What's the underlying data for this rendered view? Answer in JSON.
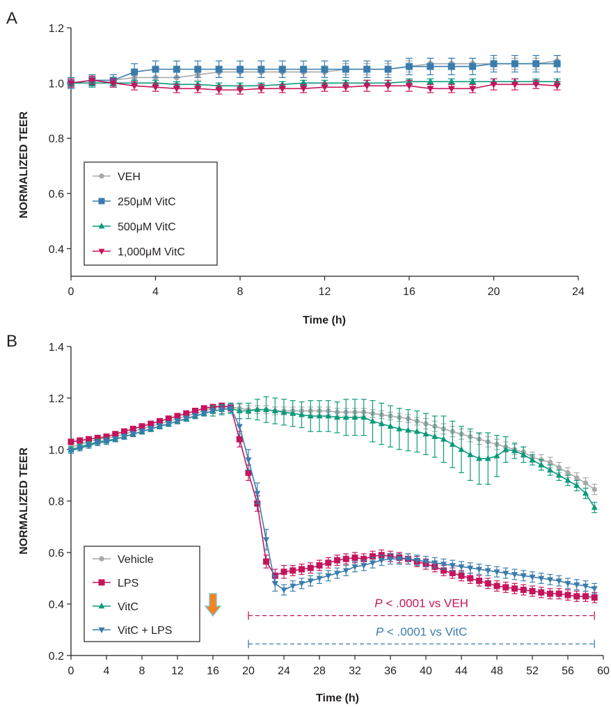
{
  "chart_data": [
    {
      "type": "line",
      "panel_label": "A",
      "xlabel": "Time (h)",
      "ylabel": "NORMALIZED TEER",
      "xlim": [
        0,
        24
      ],
      "ylim": [
        0.3,
        1.2
      ],
      "xticks": [
        0,
        4,
        8,
        12,
        16,
        20,
        24
      ],
      "yticks": [
        0.4,
        0.6,
        0.8,
        1.0,
        1.2
      ],
      "ytick_labels": [
        "0.4",
        "0.6",
        "0.8",
        "1.0",
        "1.2"
      ],
      "legend_position": "bottom-left",
      "grid": false,
      "x": [
        0,
        1,
        2,
        3,
        4,
        5,
        6,
        7,
        8,
        9,
        10,
        11,
        12,
        13,
        14,
        15,
        16,
        17,
        18,
        19,
        20,
        21,
        22,
        23
      ],
      "series": [
        {
          "name": "VEH",
          "color": "#a7a9ac",
          "marker": "circle",
          "values": [
            1.0,
            1.01,
            1.01,
            1.02,
            1.02,
            1.02,
            1.03,
            1.04,
            1.04,
            1.04,
            1.04,
            1.04,
            1.04,
            1.05,
            1.05,
            1.05,
            1.06,
            1.07,
            1.07,
            1.07,
            1.07,
            1.07,
            1.07,
            1.08
          ],
          "errors": [
            0.02,
            0.02,
            0.02,
            0.02,
            0.02,
            0.02,
            0.02,
            0.02,
            0.02,
            0.02,
            0.02,
            0.02,
            0.02,
            0.02,
            0.02,
            0.02,
            0.02,
            0.02,
            0.02,
            0.02,
            0.02,
            0.02,
            0.02,
            0.02
          ]
        },
        {
          "name": "250μM VitC",
          "color": "#3a7cad",
          "marker": "square",
          "values": [
            1.0,
            1.01,
            1.01,
            1.04,
            1.05,
            1.05,
            1.05,
            1.05,
            1.05,
            1.05,
            1.05,
            1.05,
            1.05,
            1.05,
            1.05,
            1.05,
            1.06,
            1.06,
            1.06,
            1.06,
            1.07,
            1.07,
            1.07,
            1.07
          ],
          "errors": [
            0.02,
            0.02,
            0.02,
            0.03,
            0.03,
            0.03,
            0.03,
            0.03,
            0.03,
            0.03,
            0.03,
            0.03,
            0.03,
            0.03,
            0.03,
            0.03,
            0.03,
            0.03,
            0.03,
            0.03,
            0.03,
            0.03,
            0.03,
            0.03
          ]
        },
        {
          "name": "500μM VitC",
          "color": "#0a9a7b",
          "marker": "triangle-up",
          "values": [
            1.0,
            1.0,
            1.0,
            1.0,
            1.0,
            0.995,
            0.995,
            0.99,
            0.99,
            0.99,
            0.995,
            1.0,
            1.0,
            1.0,
            1.0,
            1.0,
            1.005,
            1.005,
            1.005,
            1.005,
            1.005,
            1.005,
            1.005,
            1.005
          ],
          "errors": [
            0.015,
            0.015,
            0.015,
            0.01,
            0.01,
            0.01,
            0.01,
            0.01,
            0.01,
            0.01,
            0.01,
            0.01,
            0.01,
            0.01,
            0.01,
            0.01,
            0.01,
            0.01,
            0.01,
            0.01,
            0.01,
            0.01,
            0.01,
            0.01
          ]
        },
        {
          "name": "1,000μM VitC",
          "color": "#c4145b",
          "marker": "triangle-down",
          "values": [
            1.0,
            1.01,
            1.0,
            0.99,
            0.985,
            0.98,
            0.98,
            0.975,
            0.975,
            0.98,
            0.98,
            0.98,
            0.985,
            0.985,
            0.99,
            0.99,
            0.99,
            0.98,
            0.98,
            0.98,
            0.995,
            0.995,
            0.995,
            0.99
          ],
          "errors": [
            0.015,
            0.015,
            0.015,
            0.015,
            0.015,
            0.015,
            0.015,
            0.015,
            0.015,
            0.015,
            0.015,
            0.015,
            0.015,
            0.015,
            0.02,
            0.02,
            0.02,
            0.015,
            0.015,
            0.015,
            0.02,
            0.02,
            0.015,
            0.015
          ]
        }
      ]
    },
    {
      "type": "line",
      "panel_label": "B",
      "xlabel": "Time (h)",
      "ylabel": "NORMALIZED TEER",
      "xlim": [
        0,
        60
      ],
      "ylim": [
        0.2,
        1.4
      ],
      "xticks": [
        0,
        4,
        8,
        12,
        16,
        20,
        24,
        28,
        32,
        36,
        40,
        44,
        48,
        52,
        56,
        60
      ],
      "yticks": [
        0.2,
        0.4,
        0.6,
        0.8,
        1.0,
        1.2,
        1.4
      ],
      "ytick_labels": [
        "0.2",
        "0.4",
        "0.6",
        "0.8",
        "1.0",
        "1.2",
        "1.4"
      ],
      "legend_position": "bottom-left",
      "grid": false,
      "arrow_marker": {
        "x": 16,
        "color": "#f58220"
      },
      "annotations": [
        {
          "prefix": "P",
          "text": " < .0001 vs VEH",
          "color": "#c4145b",
          "x_range": [
            20,
            59
          ],
          "y": 0.355
        },
        {
          "prefix": "P",
          "text": " < .0001 vs VitC",
          "color": "#3a7cad",
          "x_range": [
            20,
            59
          ],
          "y": 0.245
        }
      ],
      "x": [
        0,
        1,
        2,
        3,
        4,
        5,
        6,
        7,
        8,
        9,
        10,
        11,
        12,
        13,
        14,
        15,
        16,
        17,
        18,
        19,
        20,
        21,
        22,
        23,
        24,
        25,
        26,
        27,
        28,
        29,
        30,
        31,
        32,
        33,
        34,
        35,
        36,
        37,
        38,
        39,
        40,
        41,
        42,
        43,
        44,
        45,
        46,
        47,
        48,
        49,
        50,
        51,
        52,
        53,
        54,
        55,
        56,
        57,
        58,
        59
      ],
      "series": [
        {
          "name": "Vehicle",
          "color": "#a7a9ac",
          "marker": "circle",
          "values": [
            1.01,
            1.02,
            1.03,
            1.04,
            1.045,
            1.05,
            1.06,
            1.07,
            1.08,
            1.09,
            1.1,
            1.11,
            1.12,
            1.13,
            1.14,
            1.15,
            1.16,
            1.165,
            1.165,
            1.16,
            1.155,
            1.155,
            1.155,
            1.15,
            1.15,
            1.15,
            1.15,
            1.15,
            1.15,
            1.15,
            1.145,
            1.145,
            1.145,
            1.145,
            1.14,
            1.135,
            1.13,
            1.125,
            1.12,
            1.11,
            1.1,
            1.09,
            1.08,
            1.07,
            1.06,
            1.05,
            1.04,
            1.03,
            1.02,
            1.01,
            1.0,
            0.99,
            0.97,
            0.96,
            0.95,
            0.93,
            0.91,
            0.89,
            0.87,
            0.845
          ],
          "errors": [
            0.01,
            0.01,
            0.01,
            0.01,
            0.01,
            0.01,
            0.01,
            0.01,
            0.01,
            0.01,
            0.01,
            0.01,
            0.01,
            0.01,
            0.01,
            0.01,
            0.01,
            0.01,
            0.015,
            0.015,
            0.015,
            0.015,
            0.015,
            0.015,
            0.015,
            0.015,
            0.015,
            0.015,
            0.015,
            0.015,
            0.015,
            0.015,
            0.015,
            0.015,
            0.015,
            0.015,
            0.015,
            0.015,
            0.015,
            0.015,
            0.02,
            0.02,
            0.02,
            0.02,
            0.02,
            0.02,
            0.02,
            0.02,
            0.02,
            0.02,
            0.02,
            0.02,
            0.02,
            0.02,
            0.02,
            0.02,
            0.02,
            0.02,
            0.02,
            0.02
          ]
        },
        {
          "name": "LPS",
          "color": "#c4145b",
          "marker": "square",
          "values": [
            1.03,
            1.035,
            1.04,
            1.045,
            1.05,
            1.06,
            1.07,
            1.08,
            1.09,
            1.1,
            1.11,
            1.12,
            1.13,
            1.14,
            1.15,
            1.16,
            1.165,
            1.17,
            1.165,
            1.04,
            0.91,
            0.79,
            0.565,
            0.51,
            0.525,
            0.53,
            0.535,
            0.54,
            0.55,
            0.56,
            0.57,
            0.575,
            0.58,
            0.575,
            0.585,
            0.59,
            0.585,
            0.58,
            0.575,
            0.565,
            0.555,
            0.545,
            0.53,
            0.52,
            0.51,
            0.5,
            0.49,
            0.48,
            0.47,
            0.465,
            0.46,
            0.455,
            0.45,
            0.445,
            0.44,
            0.44,
            0.435,
            0.43,
            0.43,
            0.425
          ],
          "errors": [
            0.01,
            0.01,
            0.01,
            0.01,
            0.01,
            0.01,
            0.01,
            0.01,
            0.01,
            0.01,
            0.01,
            0.01,
            0.01,
            0.01,
            0.01,
            0.01,
            0.01,
            0.01,
            0.015,
            0.03,
            0.03,
            0.03,
            0.025,
            0.025,
            0.025,
            0.02,
            0.02,
            0.02,
            0.02,
            0.02,
            0.02,
            0.02,
            0.02,
            0.02,
            0.02,
            0.02,
            0.02,
            0.02,
            0.02,
            0.02,
            0.02,
            0.02,
            0.02,
            0.02,
            0.02,
            0.02,
            0.02,
            0.02,
            0.02,
            0.02,
            0.02,
            0.02,
            0.02,
            0.02,
            0.02,
            0.02,
            0.02,
            0.02,
            0.02,
            0.02
          ]
        },
        {
          "name": "VitC",
          "color": "#0a9a7b",
          "marker": "triangle-up",
          "values": [
            1.0,
            1.01,
            1.02,
            1.03,
            1.035,
            1.04,
            1.05,
            1.06,
            1.07,
            1.08,
            1.09,
            1.1,
            1.11,
            1.12,
            1.13,
            1.14,
            1.15,
            1.155,
            1.16,
            1.15,
            1.15,
            1.155,
            1.155,
            1.15,
            1.145,
            1.14,
            1.135,
            1.13,
            1.13,
            1.13,
            1.125,
            1.125,
            1.125,
            1.125,
            1.11,
            1.1,
            1.09,
            1.08,
            1.075,
            1.07,
            1.06,
            1.05,
            1.04,
            1.02,
            1.0,
            0.98,
            0.965,
            0.965,
            0.975,
            1.0,
            0.995,
            0.98,
            0.96,
            0.94,
            0.92,
            0.9,
            0.88,
            0.86,
            0.83,
            0.775
          ],
          "errors": [
            0.01,
            0.01,
            0.01,
            0.01,
            0.01,
            0.01,
            0.01,
            0.01,
            0.01,
            0.01,
            0.01,
            0.01,
            0.01,
            0.01,
            0.01,
            0.01,
            0.02,
            0.02,
            0.02,
            0.03,
            0.03,
            0.04,
            0.05,
            0.05,
            0.05,
            0.05,
            0.05,
            0.06,
            0.06,
            0.06,
            0.06,
            0.07,
            0.07,
            0.07,
            0.08,
            0.08,
            0.08,
            0.08,
            0.08,
            0.08,
            0.08,
            0.08,
            0.09,
            0.09,
            0.09,
            0.1,
            0.1,
            0.1,
            0.08,
            0.05,
            0.03,
            0.03,
            0.02,
            0.02,
            0.02,
            0.02,
            0.02,
            0.02,
            0.02,
            0.02
          ]
        },
        {
          "name": "VitC + LPS",
          "color": "#3a7cad",
          "marker": "triangle-down",
          "values": [
            0.995,
            1.005,
            1.015,
            1.025,
            1.03,
            1.04,
            1.05,
            1.06,
            1.07,
            1.08,
            1.09,
            1.1,
            1.11,
            1.12,
            1.13,
            1.14,
            1.15,
            1.155,
            1.16,
            1.09,
            0.96,
            0.83,
            0.65,
            0.48,
            0.455,
            0.47,
            0.48,
            0.49,
            0.5,
            0.51,
            0.52,
            0.53,
            0.545,
            0.55,
            0.56,
            0.57,
            0.575,
            0.575,
            0.575,
            0.57,
            0.565,
            0.56,
            0.555,
            0.55,
            0.545,
            0.54,
            0.535,
            0.53,
            0.525,
            0.52,
            0.515,
            0.51,
            0.505,
            0.5,
            0.495,
            0.49,
            0.48,
            0.475,
            0.47,
            0.46
          ],
          "errors": [
            0.01,
            0.01,
            0.01,
            0.01,
            0.01,
            0.01,
            0.01,
            0.01,
            0.01,
            0.01,
            0.01,
            0.01,
            0.01,
            0.01,
            0.01,
            0.01,
            0.01,
            0.015,
            0.015,
            0.03,
            0.04,
            0.04,
            0.04,
            0.03,
            0.02,
            0.02,
            0.02,
            0.02,
            0.02,
            0.02,
            0.02,
            0.02,
            0.02,
            0.02,
            0.02,
            0.02,
            0.02,
            0.02,
            0.02,
            0.02,
            0.02,
            0.02,
            0.02,
            0.02,
            0.02,
            0.02,
            0.02,
            0.02,
            0.02,
            0.02,
            0.02,
            0.02,
            0.02,
            0.02,
            0.02,
            0.02,
            0.02,
            0.02,
            0.02,
            0.02
          ]
        }
      ]
    }
  ]
}
